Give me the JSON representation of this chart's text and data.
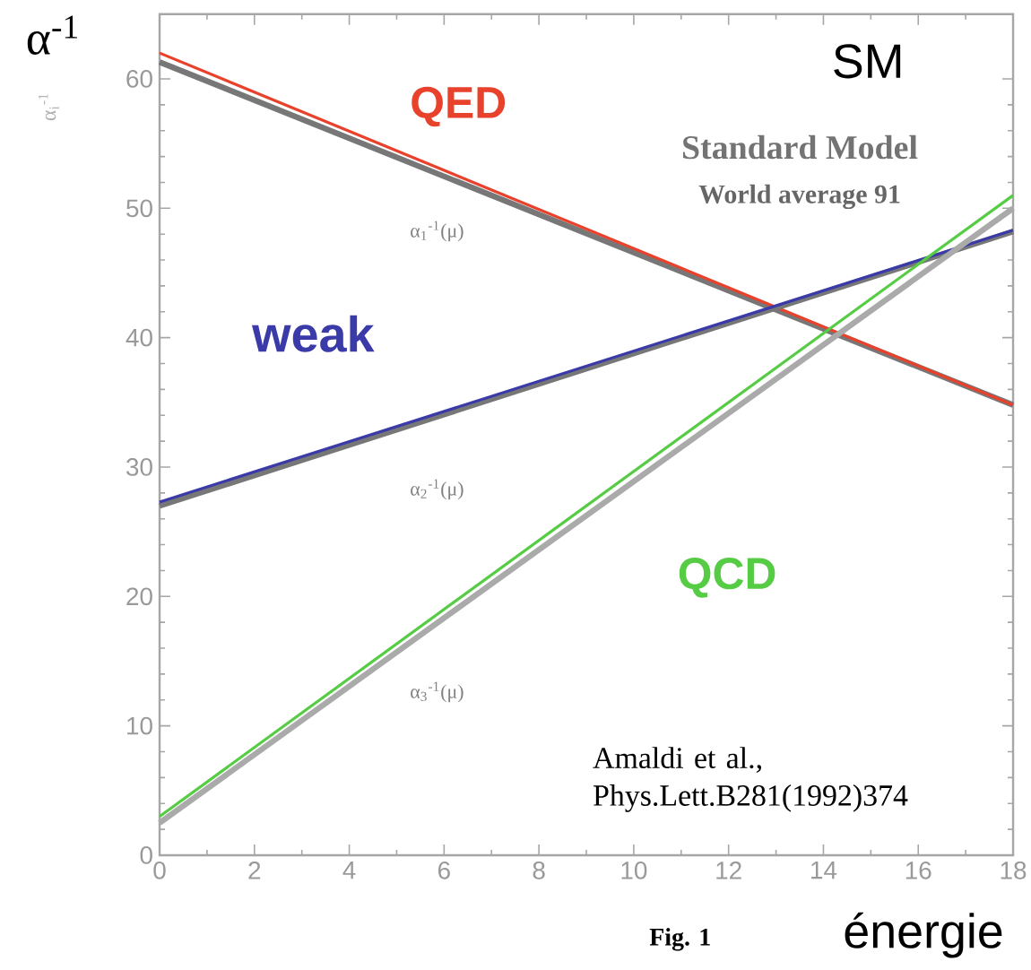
{
  "chart_data": {
    "type": "line",
    "title": "SM",
    "subtitle": "Standard Model",
    "xlabel": "énergie",
    "ylabel": "α$^{-1}$",
    "annotations": [
      "World average 91",
      "α$_{1}$$^{-1}$(μ)",
      "α$_{2}$$^{-1}$(μ)",
      "α$_{3}$$^{-1}$(μ)",
      "Amaldi et al., Phys.Lett.B281(1992)374",
      "Fig. 1",
      "α$_{i}$$^{-1}$"
    ],
    "x": [
      0,
      18
    ],
    "series": [
      {
        "color": "#777777",
        "values": [
          61.3,
          34.8
        ]
      },
      {
        "name": "QED",
        "color": "#e8412c",
        "values": [
          62.0,
          34.8
        ]
      },
      {
        "color": "#777777",
        "values": [
          27.0,
          48.2
        ]
      },
      {
        "name": "weak",
        "color": "#3a3aa8",
        "values": [
          27.3,
          48.3
        ]
      },
      {
        "color": "#aaaaaa",
        "values": [
          2.5,
          50.0
        ]
      },
      {
        "name": "QCD",
        "color": "#55cc44",
        "values": [
          3.0,
          51.0
        ]
      }
    ],
    "xlim": [
      0,
      18
    ],
    "ylim": [
      0,
      65
    ],
    "xticks": [
      0,
      2,
      4,
      6,
      8,
      10,
      12,
      14,
      16,
      18
    ],
    "yticks": [
      0,
      10,
      20,
      30,
      40,
      50,
      60
    ]
  }
}
